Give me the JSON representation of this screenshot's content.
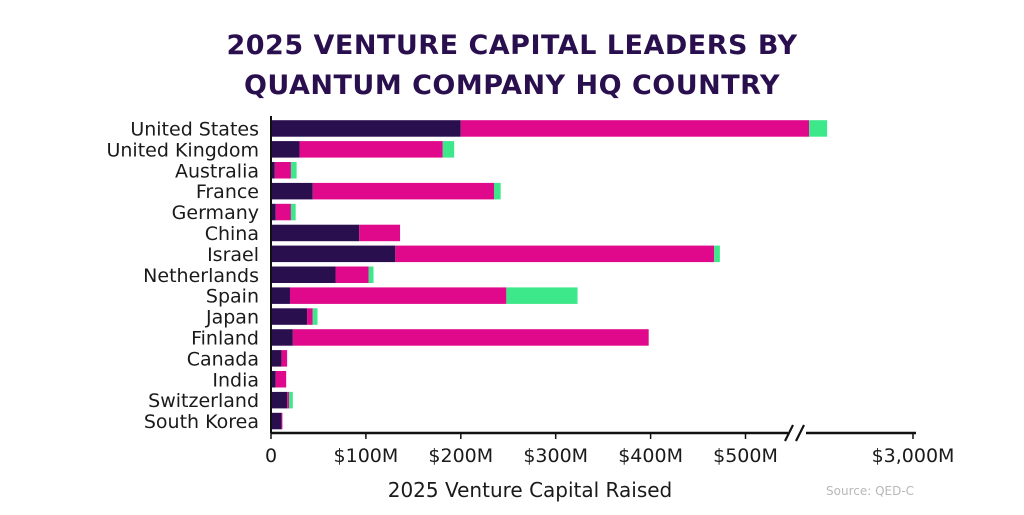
{
  "chart_data": {
    "type": "bar",
    "stacked": true,
    "orientation": "horizontal",
    "title_lines": [
      "2025 VENTURE CAPITAL LEADERS BY",
      "QUANTUM COMPANY HQ COUNTRY"
    ],
    "xlabel": "2025 Venture Capital Raised",
    "ylabel": "",
    "source": "Source: QED-C",
    "x_ticks": [
      "0",
      "$100M",
      "$200M",
      "$300M",
      "$400M",
      "$500M",
      "$3,000M"
    ],
    "axis_break": "between $500M and $3,000M",
    "categories": [
      "United States",
      "United Kingdom",
      "Australia",
      "France",
      "Germany",
      "China",
      "Israel",
      "Netherlands",
      "Spain",
      "Japan",
      "Finland",
      "Canada",
      "India",
      "Switzerland",
      "South Korea"
    ],
    "colors": [
      "#2a0f4f",
      "#e0098c",
      "#3de88a"
    ],
    "series": [
      {
        "values": [
          200,
          30,
          4,
          44,
          5,
          93,
          131,
          68,
          20,
          38,
          23,
          11,
          5,
          17,
          11
        ]
      },
      {
        "values": [
          368,
          151,
          17,
          191,
          16,
          43,
          336,
          35,
          228,
          6,
          375,
          6,
          11,
          2,
          1
        ]
      },
      {
        "values": [
          20,
          12,
          6,
          7,
          5,
          0,
          6,
          5,
          75,
          5,
          0,
          0,
          0,
          4,
          0
        ]
      }
    ]
  }
}
